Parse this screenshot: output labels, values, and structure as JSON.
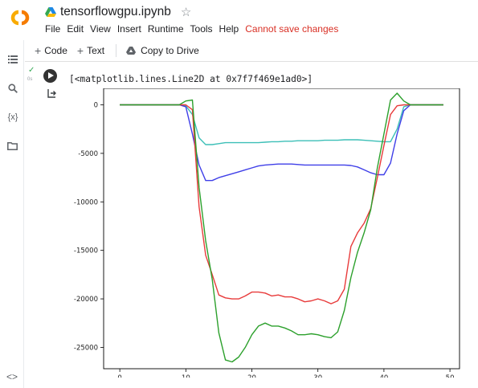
{
  "header": {
    "logo": "CO",
    "title": "tensorflowgpu.ipynb",
    "star_icon": "star-icon",
    "menu": [
      "File",
      "Edit",
      "View",
      "Insert",
      "Runtime",
      "Tools",
      "Help"
    ],
    "warning": "Cannot save changes"
  },
  "rail": {
    "icons": [
      "toc-icon",
      "search-icon",
      "variables-icon",
      "folder-icon"
    ],
    "variables_text": "{x}",
    "bottom": "<>"
  },
  "toolbar": {
    "code_label": "Code",
    "text_label": "Text",
    "copy_label": "Copy to Drive"
  },
  "cell": {
    "status_icon": "checkmark-icon",
    "exec_time": "0s",
    "output_text": "[<matplotlib.lines.Line2D at 0x7f7f469e1ad0>]"
  },
  "chart_data": {
    "type": "line",
    "xlim": [
      -2.45,
      51.45
    ],
    "ylim": [
      -27200,
      1700
    ],
    "xticks": [
      0,
      10,
      20,
      30,
      40,
      50
    ],
    "yticks": [
      0,
      -5000,
      -10000,
      -15000,
      -20000,
      -25000
    ],
    "series": [
      {
        "color": "#3cbfb7",
        "x": [
          0,
          1,
          2,
          3,
          4,
          5,
          6,
          7,
          8,
          9,
          10,
          11,
          12,
          13,
          14,
          15,
          16,
          17,
          18,
          19,
          20,
          21,
          22,
          23,
          24,
          25,
          26,
          27,
          28,
          29,
          30,
          31,
          32,
          33,
          34,
          35,
          36,
          37,
          38,
          39,
          40,
          41,
          42,
          43,
          44,
          45,
          46,
          47,
          48,
          49
        ],
        "y": [
          0,
          0,
          0,
          0,
          0,
          0,
          0,
          0,
          0,
          0,
          -100,
          -1000,
          -3400,
          -4100,
          -4100,
          -4000,
          -3900,
          -3900,
          -3900,
          -3900,
          -3900,
          -3900,
          -3850,
          -3800,
          -3800,
          -3750,
          -3750,
          -3700,
          -3700,
          -3700,
          -3700,
          -3650,
          -3650,
          -3650,
          -3600,
          -3600,
          -3600,
          -3650,
          -3700,
          -3750,
          -3800,
          -3800,
          -2500,
          -200,
          0,
          0,
          0,
          0,
          0,
          0
        ]
      },
      {
        "color": "#3f3fe8",
        "x": [
          0,
          1,
          2,
          3,
          4,
          5,
          6,
          7,
          8,
          9,
          10,
          11,
          12,
          13,
          14,
          15,
          16,
          17,
          18,
          19,
          20,
          21,
          22,
          23,
          24,
          25,
          26,
          27,
          28,
          29,
          30,
          31,
          32,
          33,
          34,
          35,
          36,
          37,
          38,
          39,
          40,
          41,
          42,
          43,
          44,
          45,
          46,
          47,
          48,
          49
        ],
        "y": [
          0,
          0,
          0,
          0,
          0,
          0,
          0,
          0,
          0,
          0,
          -200,
          -3000,
          -6200,
          -7800,
          -7800,
          -7500,
          -7300,
          -7100,
          -6900,
          -6700,
          -6500,
          -6300,
          -6200,
          -6150,
          -6100,
          -6100,
          -6100,
          -6150,
          -6200,
          -6200,
          -6200,
          -6200,
          -6200,
          -6200,
          -6200,
          -6250,
          -6400,
          -6700,
          -7000,
          -7200,
          -7200,
          -6000,
          -3000,
          -600,
          0,
          0,
          0,
          0,
          0,
          0
        ]
      },
      {
        "color": "#e83b3b",
        "x": [
          0,
          1,
          2,
          3,
          4,
          5,
          6,
          7,
          8,
          9,
          10,
          11,
          12,
          13,
          14,
          15,
          16,
          17,
          18,
          19,
          20,
          21,
          22,
          23,
          24,
          25,
          26,
          27,
          28,
          29,
          30,
          31,
          32,
          33,
          34,
          35,
          36,
          37,
          38,
          39,
          40,
          41,
          42,
          43,
          44,
          45,
          46,
          47,
          48,
          49
        ],
        "y": [
          0,
          0,
          0,
          0,
          0,
          0,
          0,
          0,
          0,
          0,
          0,
          -500,
          -10500,
          -15500,
          -17500,
          -19600,
          -19900,
          -20000,
          -20000,
          -19700,
          -19300,
          -19300,
          -19400,
          -19700,
          -19600,
          -19800,
          -19800,
          -20000,
          -20300,
          -20200,
          -20000,
          -20200,
          -20500,
          -20200,
          -19000,
          -14600,
          -13200,
          -12200,
          -10700,
          -7500,
          -4200,
          -1000,
          -100,
          0,
          0,
          0,
          0,
          0,
          0,
          0
        ]
      },
      {
        "color": "#2ca02c",
        "x": [
          0,
          1,
          2,
          3,
          4,
          5,
          6,
          7,
          8,
          9,
          10,
          11,
          12,
          13,
          14,
          15,
          16,
          17,
          18,
          19,
          20,
          21,
          22,
          23,
          24,
          25,
          26,
          27,
          28,
          29,
          30,
          31,
          32,
          33,
          34,
          35,
          36,
          37,
          38,
          39,
          40,
          41,
          42,
          43,
          44,
          45,
          46,
          47,
          48,
          49
        ],
        "y": [
          0,
          0,
          0,
          0,
          0,
          0,
          0,
          0,
          0,
          0,
          400,
          500,
          -8500,
          -14000,
          -18000,
          -23500,
          -26300,
          -26500,
          -26000,
          -25000,
          -23700,
          -22800,
          -22500,
          -22800,
          -22800,
          -23000,
          -23300,
          -23700,
          -23700,
          -23600,
          -23700,
          -23900,
          -24000,
          -23400,
          -21200,
          -17800,
          -15200,
          -13200,
          -10800,
          -6500,
          -3000,
          500,
          1200,
          400,
          0,
          0,
          0,
          0,
          0,
          0
        ]
      }
    ]
  }
}
